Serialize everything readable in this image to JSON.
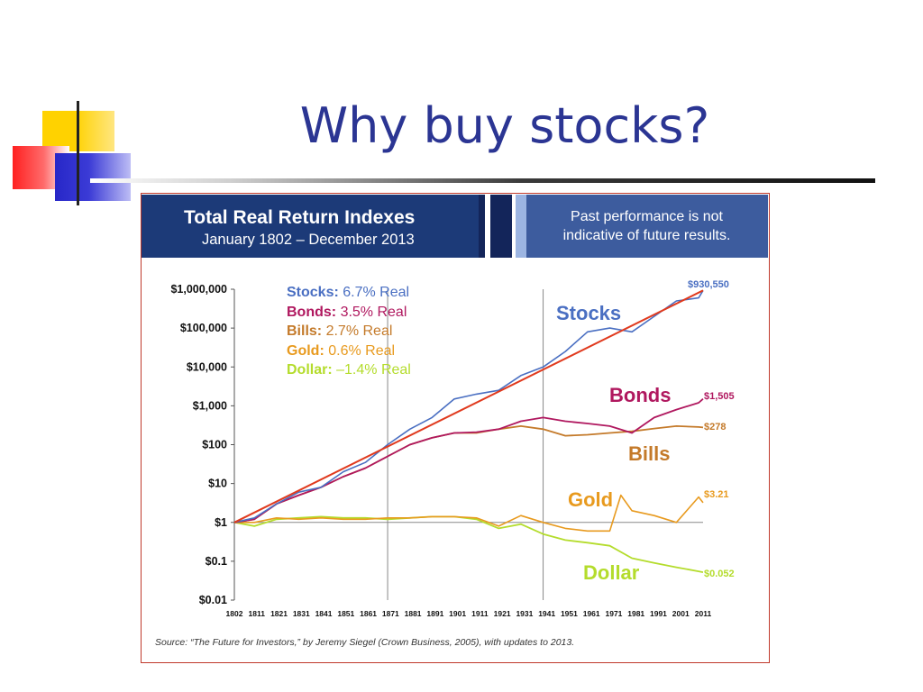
{
  "slide": {
    "title": "Why buy stocks?"
  },
  "panel": {
    "title": "Total Real Return Indexes",
    "subtitle": "January 1802 – December 2013",
    "disclaimer_line1": "Past performance is not",
    "disclaimer_line2": "indicative of future results.",
    "source": "Source: “The Future for Investors,” by Jeremy Siegel (Crown Business, 2005), with updates to 2013."
  },
  "legend": [
    {
      "name": "Stocks:",
      "text": "6.7% Real",
      "color": "#4a6fc2"
    },
    {
      "name": "Bonds:",
      "text": "3.5% Real",
      "color": "#b0185f"
    },
    {
      "name": "Bills:",
      "text": "2.7% Real",
      "color": "#c47a2a"
    },
    {
      "name": "Gold:",
      "text": "0.6% Real",
      "color": "#e89a1e"
    },
    {
      "name": "Dollar:",
      "text": "–1.4% Real",
      "color": "#b4dc2c"
    }
  ],
  "colors": {
    "Stocks": "#4a6fc2",
    "Bonds": "#b0185f",
    "Bills": "#c47a2a",
    "Gold": "#e89a1e",
    "Dollar": "#b4dc2c",
    "Trend": "#e03a1e"
  },
  "chart_data": {
    "type": "line",
    "title": "Total Real Return Indexes",
    "subtitle": "January 1802 – December 2013",
    "y_scale": "log",
    "ylim": [
      0.01,
      1000000
    ],
    "xlim": [
      1802,
      2013
    ],
    "y_ticks": [
      1000000,
      100000,
      10000,
      1000,
      100,
      10,
      1,
      0.1,
      0.01
    ],
    "y_tick_labels": [
      "$1,000,000",
      "$100,000",
      "$10,000",
      "$1,000",
      "$100",
      "$10",
      "$1",
      "$0.1",
      "$0.01"
    ],
    "x_tick_labels": [
      "1802",
      "1811",
      "1821",
      "1831",
      "1841",
      "1851",
      "1861",
      "1871",
      "1881",
      "1891",
      "1901",
      "1911",
      "1921",
      "1931",
      "1941",
      "1951",
      "1961",
      "1971",
      "1981",
      "1991",
      "2001",
      "2011"
    ],
    "vertical_reference_lines": [
      1871,
      1941
    ],
    "series": [
      {
        "name": "Stocks",
        "end_label": "$930,550",
        "x": [
          1802,
          1811,
          1821,
          1831,
          1841,
          1851,
          1861,
          1871,
          1881,
          1891,
          1901,
          1911,
          1921,
          1931,
          1941,
          1951,
          1961,
          1971,
          1981,
          1991,
          2001,
          2011,
          2013
        ],
        "y": [
          1,
          1.3,
          3,
          6,
          8,
          20,
          35,
          100,
          250,
          500,
          1500,
          2000,
          2500,
          6000,
          10000,
          25000,
          80000,
          100000,
          80000,
          200000,
          500000,
          600000,
          930550
        ]
      },
      {
        "name": "Bonds",
        "end_label": "$1,505",
        "x": [
          1802,
          1811,
          1821,
          1831,
          1841,
          1851,
          1861,
          1871,
          1881,
          1891,
          1901,
          1911,
          1921,
          1931,
          1941,
          1951,
          1961,
          1971,
          1981,
          1991,
          2001,
          2011,
          2013
        ],
        "y": [
          1,
          1.2,
          3,
          5,
          8,
          15,
          25,
          50,
          100,
          150,
          200,
          210,
          250,
          400,
          500,
          400,
          350,
          300,
          200,
          500,
          800,
          1200,
          1505
        ]
      },
      {
        "name": "Bills",
        "end_label": "$278",
        "x": [
          1802,
          1811,
          1821,
          1831,
          1841,
          1851,
          1861,
          1871,
          1881,
          1891,
          1901,
          1911,
          1921,
          1931,
          1941,
          1951,
          1961,
          1971,
          1981,
          1991,
          2001,
          2011,
          2013
        ],
        "y": [
          1,
          1.2,
          3,
          5,
          8,
          15,
          25,
          50,
          100,
          150,
          200,
          200,
          250,
          300,
          250,
          170,
          180,
          200,
          220,
          260,
          300,
          285,
          278
        ]
      },
      {
        "name": "Gold",
        "end_label": "$3.21",
        "x": [
          1802,
          1811,
          1821,
          1831,
          1841,
          1851,
          1861,
          1871,
          1881,
          1891,
          1901,
          1911,
          1921,
          1931,
          1941,
          1951,
          1961,
          1971,
          1976,
          1981,
          1991,
          2001,
          2011,
          2013
        ],
        "y": [
          1,
          1,
          1.3,
          1.2,
          1.3,
          1.2,
          1.2,
          1.3,
          1.3,
          1.4,
          1.4,
          1.3,
          0.8,
          1.5,
          1.0,
          0.7,
          0.6,
          0.6,
          5,
          2,
          1.5,
          1.0,
          4.5,
          3.21
        ]
      },
      {
        "name": "Dollar",
        "end_label": "$0.052",
        "x": [
          1802,
          1811,
          1821,
          1831,
          1841,
          1851,
          1861,
          1871,
          1881,
          1891,
          1901,
          1911,
          1921,
          1931,
          1941,
          1951,
          1961,
          1971,
          1981,
          1991,
          2001,
          2011,
          2013
        ],
        "y": [
          1,
          0.8,
          1.2,
          1.3,
          1.4,
          1.3,
          1.3,
          1.2,
          1.3,
          1.4,
          1.4,
          1.2,
          0.7,
          0.9,
          0.5,
          0.35,
          0.3,
          0.25,
          0.12,
          0.09,
          0.07,
          0.055,
          0.052
        ]
      },
      {
        "name": "Trend",
        "x": [
          1802,
          2013
        ],
        "y": [
          1,
          930550
        ]
      }
    ]
  }
}
